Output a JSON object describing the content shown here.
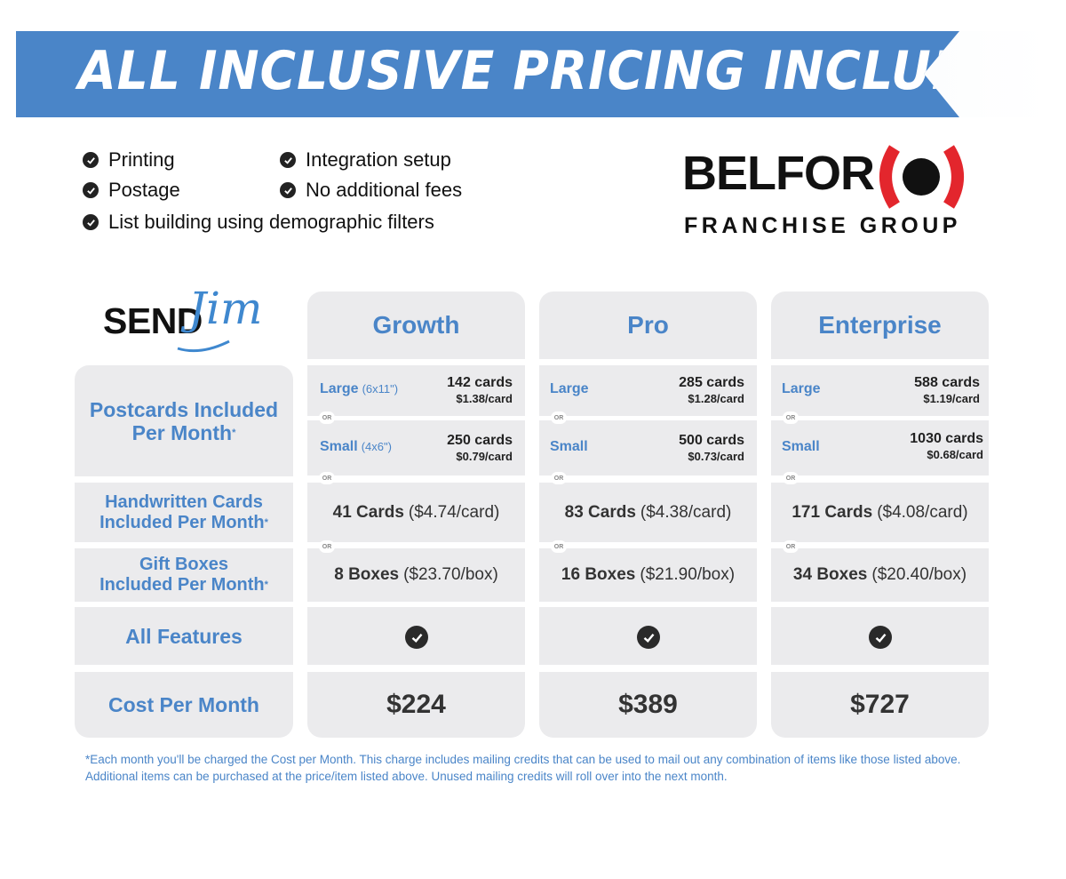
{
  "banner": {
    "title": "ALL INCLUSIVE PRICING INCLUDES:"
  },
  "includes": [
    "Printing",
    "Integration setup",
    "Postage",
    "No additional fees",
    "List building using demographic filters"
  ],
  "logo": {
    "brand": "BELFOR",
    "subtitle": "FRANCHISE GROUP",
    "colors": {
      "red": "#e3262d",
      "black": "#111111"
    }
  },
  "sendjim": {
    "send": "SEND",
    "jim": "Jim"
  },
  "plans": [
    {
      "name": "Growth",
      "postcards": {
        "large_label": "Large",
        "large_dim": "(6x11\")",
        "large_cards": "142 cards",
        "large_price": "$1.38/card",
        "small_label": "Small",
        "small_dim": "(4x6\")",
        "small_cards": "250 cards",
        "small_price": "$0.79/card"
      },
      "handwritten_bold": "41 Cards",
      "handwritten_rest": "($4.74/card)",
      "gift_bold": "8 Boxes",
      "gift_rest": "($23.70/box)",
      "cost": "$224"
    },
    {
      "name": "Pro",
      "postcards": {
        "large_label": "Large",
        "large_dim": "",
        "large_cards": "285 cards",
        "large_price": "$1.28/card",
        "small_label": "Small",
        "small_dim": "",
        "small_cards": "500 cards",
        "small_price": "$0.73/card"
      },
      "handwritten_bold": "83 Cards",
      "handwritten_rest": "($4.38/card)",
      "gift_bold": "16 Boxes",
      "gift_rest": "($21.90/box)",
      "cost": "$389"
    },
    {
      "name": "Enterprise",
      "postcards": {
        "large_label": "Large",
        "large_dim": "",
        "large_cards": "588 cards",
        "large_price": "$1.19/card",
        "small_label": "Small",
        "small_dim": "",
        "small_cards": "1030 cards",
        "small_price": "$0.68/card"
      },
      "handwritten_bold": "171 Cards",
      "handwritten_rest": "($4.08/card)",
      "gift_bold": "34 Boxes",
      "gift_rest": "($20.40/box)",
      "cost": "$727"
    }
  ],
  "rows": {
    "postcards_1": "Postcards Included",
    "postcards_2": "Per Month",
    "handwritten_1": "Handwritten Cards",
    "handwritten_2": "Included Per Month",
    "gift_1": "Gift Boxes",
    "gift_2": "Included Per Month",
    "features": "All Features",
    "cost": "Cost Per Month",
    "asterisk": "*",
    "or": "OR"
  },
  "footnote": "*Each month you'll be charged the Cost per Month. This charge includes mailing credits that can be used to mail out any combination of items like those listed above. Additional items can be purchased at the price/item listed above. Unused mailing credits will roll over into the next month.",
  "colors": {
    "blue": "#4a85c8",
    "cell": "#ebebed",
    "text": "#2c2c2c"
  }
}
